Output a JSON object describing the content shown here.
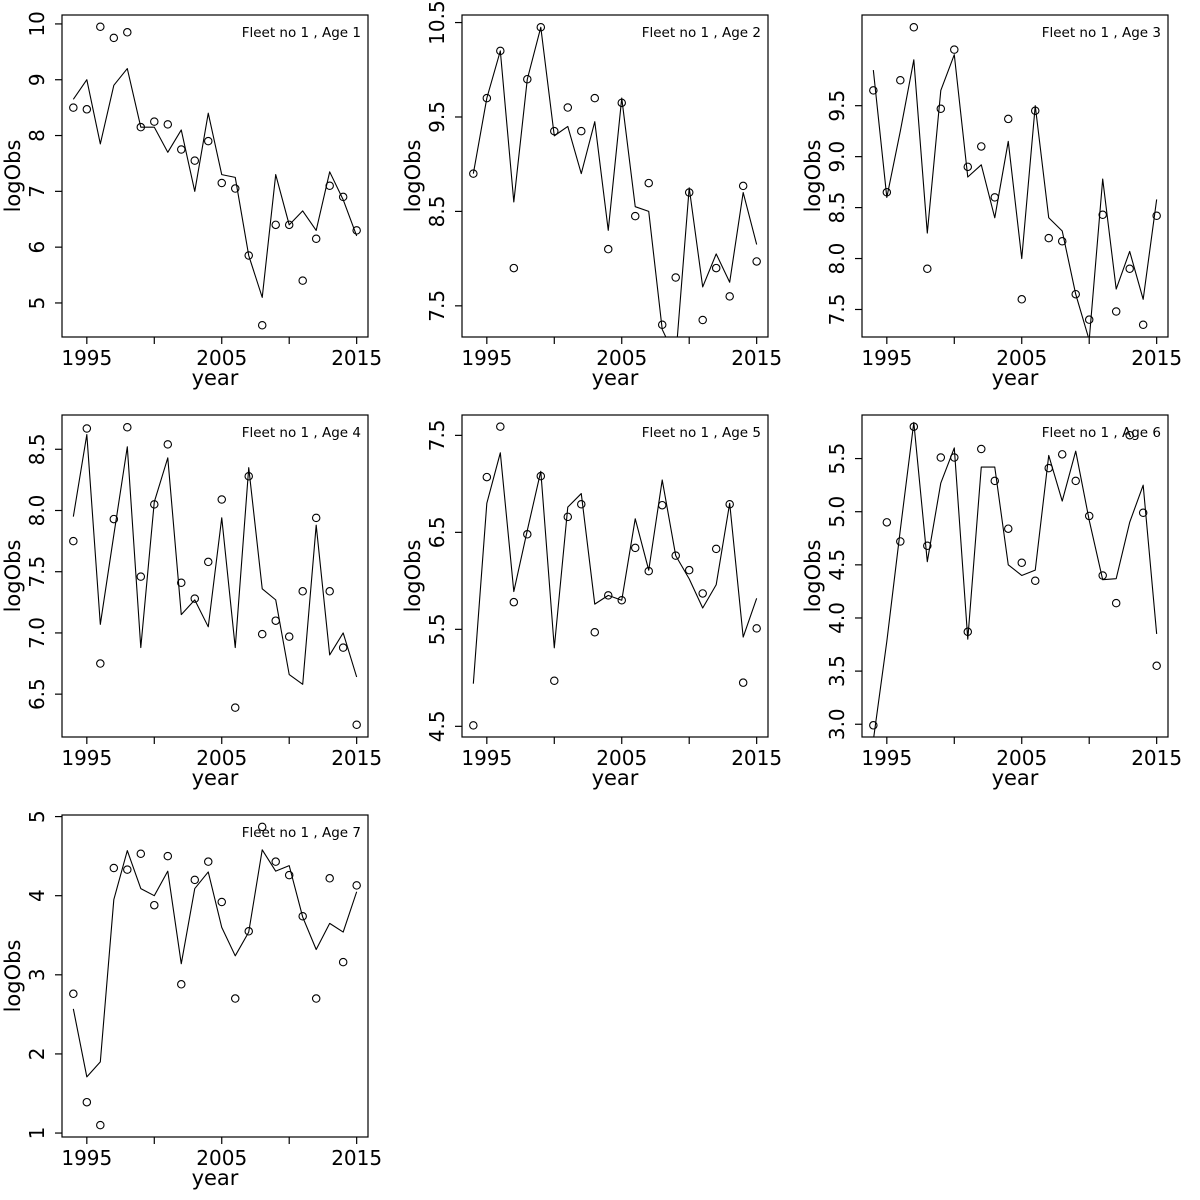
{
  "figure": {
    "background": "#ffffff",
    "stroke_color": "#000000",
    "text_color": "#000000",
    "x_axis_label": "year",
    "y_axis_label": "logObs",
    "x_tick_positions": [
      1995,
      2000,
      2005,
      2010,
      2015
    ],
    "x_tick_labels": [
      "1995",
      "",
      "2005",
      "",
      "2015"
    ]
  },
  "chart_data": [
    {
      "type": "line",
      "title": "Fleet no 1 , Age 1",
      "xlabel": "year",
      "ylabel": "logObs",
      "x": [
        1994,
        1995,
        1996,
        1997,
        1998,
        1999,
        2000,
        2001,
        2002,
        2003,
        2004,
        2005,
        2006,
        2007,
        2008,
        2009,
        2010,
        2011,
        2012,
        2013,
        2014,
        2015
      ],
      "series": [
        {
          "name": "model-fit-line",
          "style": "solid-line",
          "values": [
            8.65,
            9.0,
            7.85,
            8.9,
            9.2,
            8.15,
            8.15,
            7.7,
            8.1,
            7.0,
            8.4,
            7.3,
            7.25,
            5.85,
            5.1,
            7.3,
            6.4,
            6.65,
            6.3,
            7.35,
            6.85,
            6.2
          ]
        },
        {
          "name": "observed-points",
          "style": "open-circle",
          "values": [
            8.5,
            8.47,
            9.95,
            9.75,
            9.85,
            8.15,
            8.25,
            8.2,
            7.75,
            7.55,
            7.9,
            7.15,
            7.05,
            5.85,
            4.6,
            6.4,
            6.4,
            5.4,
            6.15,
            7.1,
            6.9,
            6.3
          ]
        }
      ],
      "xlim": [
        1993.16,
        2015.84
      ],
      "ylim": [
        4.39,
        10.16
      ],
      "yticks": [
        5,
        6,
        7,
        8,
        9,
        10
      ],
      "ytick_labels": [
        "5",
        "6",
        "7",
        "8",
        "9",
        "10"
      ]
    },
    {
      "type": "line",
      "title": "Fleet no 1 , Age 2",
      "xlabel": "year",
      "ylabel": "logObs",
      "x": [
        1994,
        1995,
        1996,
        1997,
        1998,
        1999,
        2000,
        2001,
        2002,
        2003,
        2004,
        2005,
        2006,
        2007,
        2008,
        2009,
        2010,
        2011,
        2012,
        2013,
        2014,
        2015
      ],
      "series": [
        {
          "name": "model-fit-line",
          "style": "solid-line",
          "values": [
            8.9,
            9.7,
            10.2,
            8.6,
            9.9,
            10.45,
            9.3,
            9.4,
            8.9,
            9.45,
            8.3,
            9.7,
            8.55,
            8.5,
            7.25,
            6.95,
            8.75,
            7.7,
            8.05,
            7.75,
            8.7,
            8.15
          ]
        },
        {
          "name": "observed-points",
          "style": "open-circle",
          "values": [
            8.9,
            9.7,
            10.2,
            7.9,
            9.9,
            10.45,
            9.35,
            9.6,
            9.35,
            9.7,
            8.1,
            9.65,
            8.45,
            8.8,
            7.3,
            7.8,
            8.7,
            7.35,
            7.9,
            7.6,
            8.77,
            7.97
          ]
        }
      ],
      "xlim": [
        1993.16,
        2015.84
      ],
      "ylim": [
        7.17,
        10.58
      ],
      "yticks": [
        7.5,
        8.5,
        9.5,
        10.5
      ],
      "ytick_labels": [
        "7.5",
        "8.5",
        "9.5",
        "10.5"
      ]
    },
    {
      "type": "line",
      "title": "Fleet no 1 , Age 3",
      "xlabel": "year",
      "ylabel": "logObs",
      "x": [
        1994,
        1995,
        1996,
        1997,
        1998,
        1999,
        2000,
        2001,
        2002,
        2003,
        2004,
        2005,
        2006,
        2007,
        2008,
        2009,
        2010,
        2011,
        2012,
        2013,
        2014,
        2015
      ],
      "series": [
        {
          "name": "model-fit-line",
          "style": "solid-line",
          "values": [
            9.85,
            8.6,
            9.25,
            9.95,
            8.25,
            9.65,
            10.0,
            8.8,
            8.92,
            8.4,
            9.15,
            8.0,
            9.5,
            8.4,
            8.27,
            7.65,
            7.2,
            8.78,
            7.7,
            8.07,
            7.6,
            8.58
          ]
        },
        {
          "name": "observed-points",
          "style": "open-circle",
          "values": [
            9.65,
            8.65,
            9.75,
            10.27,
            7.9,
            9.47,
            10.05,
            8.9,
            9.1,
            8.6,
            9.37,
            7.6,
            9.45,
            8.2,
            8.17,
            7.65,
            7.4,
            8.43,
            7.48,
            7.9,
            7.35,
            8.42
          ]
        }
      ],
      "xlim": [
        1993.16,
        2015.84
      ],
      "ylim": [
        7.23,
        10.39
      ],
      "yticks": [
        7.5,
        8.0,
        8.5,
        9.0,
        9.5
      ],
      "ytick_labels": [
        "7.5",
        "8.0",
        "8.5",
        "9.0",
        "9.5"
      ]
    },
    {
      "type": "line",
      "title": "Fleet no 1 , Age 4",
      "xlabel": "year",
      "ylabel": "logObs",
      "x": [
        1994,
        1995,
        1996,
        1997,
        1998,
        1999,
        2000,
        2001,
        2002,
        2003,
        2004,
        2005,
        2006,
        2007,
        2008,
        2009,
        2010,
        2011,
        2012,
        2013,
        2014,
        2015
      ],
      "series": [
        {
          "name": "model-fit-line",
          "style": "solid-line",
          "values": [
            7.95,
            8.62,
            7.07,
            7.8,
            8.52,
            6.88,
            8.07,
            8.43,
            7.15,
            7.27,
            7.05,
            7.94,
            6.88,
            8.35,
            7.36,
            7.27,
            6.66,
            6.58,
            7.88,
            6.82,
            7.0,
            6.64
          ]
        },
        {
          "name": "observed-points",
          "style": "open-circle",
          "values": [
            7.75,
            8.67,
            6.75,
            7.93,
            8.68,
            7.46,
            8.05,
            8.54,
            7.41,
            7.28,
            7.58,
            8.09,
            6.39,
            8.28,
            6.99,
            7.1,
            6.97,
            7.34,
            7.94,
            7.34,
            6.88,
            6.25
          ]
        }
      ],
      "xlim": [
        1993.16,
        2015.84
      ],
      "ylim": [
        6.15,
        8.78
      ],
      "yticks": [
        6.5,
        7.0,
        7.5,
        8.0,
        8.5
      ],
      "ytick_labels": [
        "6.5",
        "7.0",
        "7.5",
        "8.0",
        "8.5"
      ]
    },
    {
      "type": "line",
      "title": "Fleet no 1 , Age 5",
      "xlabel": "year",
      "ylabel": "logObs",
      "x": [
        1994,
        1995,
        1996,
        1997,
        1998,
        1999,
        2000,
        2001,
        2002,
        2003,
        2004,
        2005,
        2006,
        2007,
        2008,
        2009,
        2010,
        2011,
        2012,
        2013,
        2014,
        2015
      ],
      "series": [
        {
          "name": "model-fit-line",
          "style": "solid-line",
          "values": [
            4.94,
            6.8,
            7.32,
            5.89,
            6.52,
            7.13,
            5.31,
            6.76,
            6.9,
            5.76,
            5.85,
            5.8,
            6.64,
            6.11,
            7.04,
            6.26,
            6.02,
            5.72,
            5.96,
            6.8,
            5.42,
            5.82
          ]
        },
        {
          "name": "observed-points",
          "style": "open-circle",
          "values": [
            4.51,
            7.07,
            7.59,
            5.78,
            6.48,
            7.08,
            4.97,
            6.66,
            6.79,
            5.47,
            5.85,
            5.8,
            6.34,
            6.1,
            6.78,
            6.26,
            6.11,
            5.87,
            6.33,
            6.79,
            4.95,
            5.51
          ]
        }
      ],
      "xlim": [
        1993.16,
        2015.84
      ],
      "ylim": [
        4.39,
        7.71
      ],
      "yticks": [
        4.5,
        5.5,
        6.5,
        7.5
      ],
      "ytick_labels": [
        "4.5",
        "5.5",
        "6.5",
        "7.5"
      ]
    },
    {
      "type": "line",
      "title": "Fleet no 1 , Age 6",
      "xlabel": "year",
      "ylabel": "logObs",
      "x": [
        1994,
        1995,
        1996,
        1997,
        1998,
        1999,
        2000,
        2001,
        2002,
        2003,
        2004,
        2005,
        2006,
        2007,
        2008,
        2009,
        2010,
        2011,
        2012,
        2013,
        2014,
        2015
      ],
      "series": [
        {
          "name": "model-fit-line",
          "style": "solid-line",
          "values": [
            2.85,
            3.78,
            4.83,
            5.84,
            4.53,
            5.27,
            5.6,
            3.8,
            5.42,
            5.42,
            4.5,
            4.4,
            4.45,
            5.53,
            5.1,
            5.57,
            4.92,
            4.36,
            4.37,
            4.9,
            5.25,
            3.85
          ]
        },
        {
          "name": "observed-points",
          "style": "open-circle",
          "values": [
            2.99,
            4.9,
            4.72,
            5.8,
            4.68,
            5.51,
            5.51,
            3.87,
            5.59,
            5.29,
            4.84,
            4.52,
            4.35,
            5.41,
            5.54,
            5.29,
            4.96,
            4.4,
            4.14,
            5.72,
            4.99,
            3.55
          ]
        }
      ],
      "xlim": [
        1993.16,
        2015.84
      ],
      "ylim": [
        2.88,
        5.91
      ],
      "yticks": [
        3.0,
        3.5,
        4.0,
        4.5,
        5.0,
        5.5
      ],
      "ytick_labels": [
        "3.0",
        "3.5",
        "4.0",
        "4.5",
        "5.0",
        "5.5"
      ]
    },
    {
      "type": "line",
      "title": "Fleet no 1 , Age 7",
      "xlabel": "year",
      "ylabel": "logObs",
      "x": [
        1994,
        1995,
        1996,
        1997,
        1998,
        1999,
        2000,
        2001,
        2002,
        2003,
        2004,
        2005,
        2006,
        2007,
        2008,
        2009,
        2010,
        2011,
        2012,
        2013,
        2014,
        2015
      ],
      "series": [
        {
          "name": "model-fit-line",
          "style": "solid-line",
          "values": [
            2.57,
            1.71,
            1.9,
            3.95,
            4.57,
            4.09,
            4.0,
            4.31,
            3.14,
            4.09,
            4.3,
            3.6,
            3.24,
            3.54,
            4.58,
            4.31,
            4.38,
            3.73,
            3.32,
            3.65,
            3.54,
            4.05
          ]
        },
        {
          "name": "observed-points",
          "style": "open-circle",
          "values": [
            2.76,
            1.39,
            1.1,
            4.35,
            4.33,
            4.53,
            3.88,
            4.5,
            2.88,
            4.2,
            4.43,
            3.92,
            2.7,
            3.55,
            4.87,
            4.43,
            4.26,
            3.74,
            2.7,
            4.22,
            3.16,
            4.13
          ]
        }
      ],
      "xlim": [
        1993.16,
        2015.84
      ],
      "ylim": [
        0.95,
        5.02
      ],
      "yticks": [
        1,
        2,
        3,
        4,
        5
      ],
      "ytick_labels": [
        "1",
        "2",
        "3",
        "4",
        "5"
      ]
    }
  ]
}
